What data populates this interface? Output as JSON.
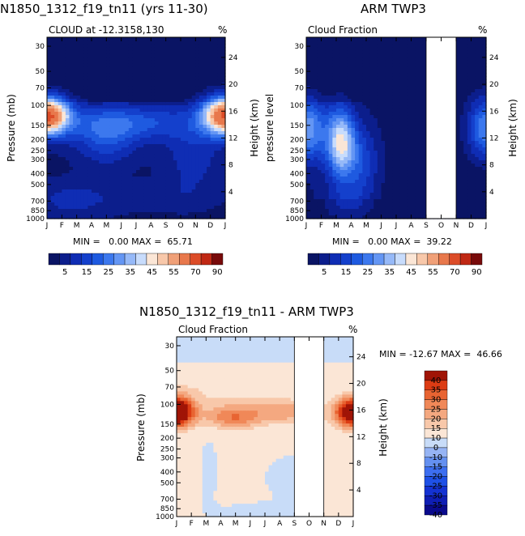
{
  "chart_data": [
    {
      "id": "p1",
      "type": "heatmap",
      "title": "N1850_1312_f19_tn11 (yrs 11-30)",
      "subtitle": "CLOUD at -12.3158,130",
      "units_label": "%",
      "ylabel": "Pressure (mb)",
      "y2label": "Height (km)",
      "xlabels": [
        "J",
        "F",
        "M",
        "A",
        "M",
        "J",
        "J",
        "A",
        "S",
        "O",
        "N",
        "D",
        "J"
      ],
      "pressure_ticks": [
        30,
        50,
        70,
        100,
        150,
        200,
        250,
        300,
        400,
        500,
        700,
        850,
        1000
      ],
      "height_ticks": [
        24,
        20,
        16,
        12,
        8,
        4
      ],
      "min_text": "MIN =   0.00 MAX =  65.71",
      "min": 0.0,
      "max": 65.71,
      "colorbar": {
        "levels": [
          0,
          5,
          10,
          15,
          20,
          25,
          30,
          35,
          40,
          45,
          50,
          55,
          60,
          70,
          80,
          90
        ],
        "labels": [
          "5",
          "15",
          "25",
          "35",
          "45",
          "55",
          "70",
          "90"
        ],
        "colors": [
          "#0a1464",
          "#0c1e8c",
          "#0f2db4",
          "#1440cc",
          "#1e5ae0",
          "#3c78ee",
          "#6496f4",
          "#96b9f8",
          "#c8dcfc",
          "#fbe6d6",
          "#f8c8aa",
          "#f0a078",
          "#e8784c",
          "#dc4c28",
          "#c02814",
          "#780a0a"
        ]
      },
      "missing_months": []
    },
    {
      "id": "p2",
      "type": "heatmap",
      "title": "ARM TWP3",
      "subtitle": "Cloud Fraction",
      "units_label": "%",
      "ylabel": "pressure level",
      "y2label": "Height (km)",
      "xlabels": [
        "J",
        "F",
        "M",
        "A",
        "M",
        "J",
        "J",
        "A",
        "S",
        "O",
        "N",
        "D",
        "J"
      ],
      "pressure_ticks": [
        30,
        50,
        70,
        100,
        150,
        200,
        250,
        300,
        400,
        500,
        700,
        850,
        1000
      ],
      "height_ticks": [
        24,
        20,
        16,
        12,
        8,
        4
      ],
      "min_text": "MIN =   0.00 MAX =  39.22",
      "min": 0.0,
      "max": 39.22,
      "colorbar": {
        "levels": [
          0,
          5,
          10,
          15,
          20,
          25,
          30,
          35,
          40,
          45,
          50,
          55,
          60,
          70,
          80,
          90
        ],
        "labels": [
          "5",
          "15",
          "25",
          "35",
          "45",
          "55",
          "70",
          "90"
        ],
        "colors": [
          "#0a1464",
          "#0c1e8c",
          "#0f2db4",
          "#1440cc",
          "#1e5ae0",
          "#3c78ee",
          "#6496f4",
          "#96b9f8",
          "#c8dcfc",
          "#fbe6d6",
          "#f8c8aa",
          "#f0a078",
          "#e8784c",
          "#dc4c28",
          "#c02814",
          "#780a0a"
        ]
      },
      "missing_months": [
        "S",
        "O",
        "N"
      ]
    },
    {
      "id": "p3",
      "type": "heatmap",
      "title": "N1850_1312_f19_tn11 - ARM TWP3",
      "subtitle": "Cloud Fraction",
      "units_label": "%",
      "ylabel": "Pressure (mb)",
      "y2label": "Height (km)",
      "xlabels": [
        "J",
        "F",
        "M",
        "A",
        "M",
        "J",
        "J",
        "A",
        "S",
        "O",
        "N",
        "D",
        "J"
      ],
      "pressure_ticks": [
        30,
        50,
        70,
        100,
        150,
        200,
        250,
        300,
        400,
        500,
        700,
        850,
        1000
      ],
      "height_ticks": [
        24,
        20,
        16,
        12,
        8,
        4
      ],
      "min_text": "MIN = -12.67 MAX =  46.66",
      "min": -12.67,
      "max": 46.66,
      "colorbar": {
        "levels": [
          -45,
          -40,
          -35,
          -30,
          -25,
          -20,
          -15,
          -10,
          0,
          10,
          15,
          20,
          25,
          30,
          35,
          40,
          45
        ],
        "labels": [
          "40",
          "35",
          "30",
          "25",
          "20",
          "15",
          "10",
          "0",
          "-10",
          "-15",
          "-20",
          "-25",
          "-30",
          "-35",
          "-40"
        ],
        "colors": [
          "#0a0a8c",
          "#0f1eb4",
          "#1432d2",
          "#1e50e6",
          "#3c6ef0",
          "#6490f0",
          "#96b4f4",
          "#c8dcf8",
          "#fbe6d6",
          "#f8c8aa",
          "#f4a880",
          "#f08858",
          "#e86432",
          "#dc3c14",
          "#a01406"
        ]
      },
      "missing_months": [
        "S",
        "O",
        "N"
      ]
    }
  ]
}
